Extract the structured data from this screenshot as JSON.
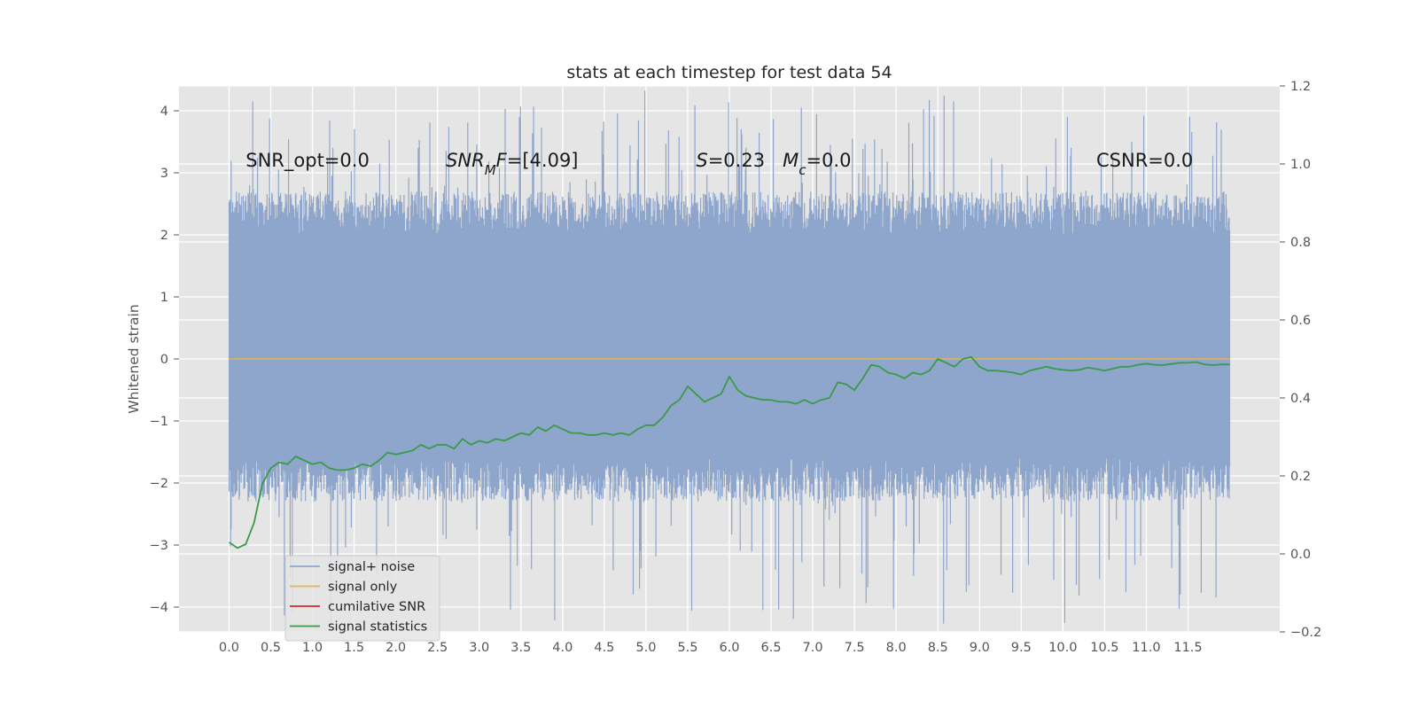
{
  "chart_data": {
    "type": "line",
    "title": "stats at each timestep for test data 54",
    "xlabel": "",
    "ylabel": "Whitened strain",
    "xlim": [
      -0.6,
      12.6
    ],
    "ylim": [
      -4.4,
      4.4
    ],
    "y2lim": [
      -0.2,
      1.2
    ],
    "grid": true,
    "legend_position": "lower-left",
    "xticks": [
      0.0,
      0.5,
      1.0,
      1.5,
      2.0,
      2.5,
      3.0,
      3.5,
      4.0,
      4.5,
      5.0,
      5.5,
      6.0,
      6.5,
      7.0,
      7.5,
      8.0,
      8.5,
      9.0,
      9.5,
      10.0,
      10.5,
      11.0,
      11.5
    ],
    "xtick_labels": [
      "0.0",
      "0.5",
      "1.0",
      "1.5",
      "2.0",
      "2.5",
      "3.0",
      "3.5",
      "4.0",
      "4.5",
      "5.0",
      "5.5",
      "6.0",
      "6.5",
      "7.0",
      "7.5",
      "8.0",
      "8.5",
      "9.0",
      "9.5",
      "10.0",
      "10.5",
      "11.0",
      "11.5"
    ],
    "yticks": [
      -4,
      -3,
      -2,
      -1,
      0,
      1,
      2,
      3,
      4
    ],
    "ytick_labels": [
      "−4",
      "−3",
      "−2",
      "−1",
      "0",
      "1",
      "2",
      "3",
      "4"
    ],
    "y2ticks": [
      -0.2,
      0.0,
      0.2,
      0.4,
      0.6,
      0.8,
      1.0,
      1.2
    ],
    "y2tick_labels": [
      "−0.2",
      "0.0",
      "0.2",
      "0.4",
      "0.6",
      "0.8",
      "1.0",
      "1.2"
    ],
    "annotations": [
      {
        "text": "SNR_opt=0.0",
        "x": 0.2,
        "y": 3.2
      },
      {
        "text": "SNR_MF=[4.09]",
        "x": 2.6,
        "y": 3.2
      },
      {
        "text": "S=0.23   M_c=0.0",
        "x": 5.6,
        "y": 3.2
      },
      {
        "text": "CSNR=0.0",
        "x": 10.4,
        "y": 3.2
      }
    ],
    "series": [
      {
        "name": "signal+ noise",
        "axis": "left",
        "color": "#8fa6cc",
        "x_range": [
          0.0,
          12.0
        ],
        "envelope_upper": 2.3,
        "envelope_lower": -1.9,
        "peak_max": 4.0,
        "peak_min": -4.1
      },
      {
        "name": "signal only",
        "axis": "left",
        "color": "#e8b44a",
        "x": [
          0.0,
          12.0
        ],
        "y": [
          0.0,
          0.0
        ]
      },
      {
        "name": "cumilative SNR",
        "axis": "left",
        "color": "#d62728",
        "x": [],
        "y": []
      },
      {
        "name": "signal statistics",
        "axis": "right",
        "color": "#3a9a48",
        "x": [
          0.0,
          0.1,
          0.2,
          0.3,
          0.4,
          0.5,
          0.6,
          0.7,
          0.8,
          0.9,
          1.0,
          1.1,
          1.2,
          1.3,
          1.4,
          1.5,
          1.6,
          1.7,
          1.8,
          1.9,
          2.0,
          2.1,
          2.2,
          2.3,
          2.4,
          2.5,
          2.6,
          2.7,
          2.8,
          2.9,
          3.0,
          3.1,
          3.2,
          3.3,
          3.4,
          3.5,
          3.6,
          3.7,
          3.8,
          3.9,
          4.0,
          4.1,
          4.2,
          4.3,
          4.4,
          4.5,
          4.6,
          4.7,
          4.8,
          4.9,
          5.0,
          5.1,
          5.2,
          5.3,
          5.4,
          5.5,
          5.6,
          5.7,
          5.8,
          5.9,
          6.0,
          6.1,
          6.2,
          6.3,
          6.4,
          6.5,
          6.6,
          6.7,
          6.8,
          6.9,
          7.0,
          7.1,
          7.2,
          7.3,
          7.4,
          7.5,
          7.6,
          7.7,
          7.8,
          7.9,
          8.0,
          8.1,
          8.2,
          8.3,
          8.4,
          8.5,
          8.6,
          8.7,
          8.8,
          8.9,
          9.0,
          9.1,
          9.2,
          9.3,
          9.4,
          9.5,
          9.6,
          9.7,
          9.8,
          9.9,
          10.0,
          10.1,
          10.2,
          10.3,
          10.4,
          10.5,
          10.6,
          10.7,
          10.8,
          10.9,
          11.0,
          11.1,
          11.2,
          11.3,
          11.4,
          11.5,
          11.6,
          11.7,
          11.8,
          11.9,
          12.0
        ],
        "y": [
          0.03,
          0.015,
          0.025,
          0.08,
          0.18,
          0.22,
          0.235,
          0.23,
          0.25,
          0.24,
          0.23,
          0.235,
          0.22,
          0.215,
          0.215,
          0.22,
          0.23,
          0.225,
          0.24,
          0.26,
          0.255,
          0.26,
          0.265,
          0.28,
          0.27,
          0.28,
          0.28,
          0.27,
          0.295,
          0.28,
          0.29,
          0.285,
          0.295,
          0.29,
          0.3,
          0.31,
          0.305,
          0.325,
          0.315,
          0.33,
          0.32,
          0.31,
          0.31,
          0.305,
          0.305,
          0.31,
          0.305,
          0.31,
          0.305,
          0.32,
          0.33,
          0.33,
          0.35,
          0.38,
          0.395,
          0.43,
          0.41,
          0.39,
          0.4,
          0.41,
          0.455,
          0.42,
          0.405,
          0.4,
          0.395,
          0.395,
          0.39,
          0.39,
          0.385,
          0.395,
          0.385,
          0.395,
          0.4,
          0.44,
          0.435,
          0.42,
          0.45,
          0.485,
          0.48,
          0.465,
          0.46,
          0.45,
          0.465,
          0.46,
          0.47,
          0.5,
          0.49,
          0.48,
          0.5,
          0.505,
          0.48,
          0.47,
          0.47,
          0.468,
          0.465,
          0.46,
          0.47,
          0.475,
          0.48,
          0.475,
          0.472,
          0.47,
          0.472,
          0.478,
          0.474,
          0.47,
          0.475,
          0.48,
          0.48,
          0.485,
          0.488,
          0.485,
          0.484,
          0.487,
          0.49,
          0.49,
          0.492,
          0.486,
          0.484,
          0.486,
          0.486
        ]
      }
    ]
  }
}
